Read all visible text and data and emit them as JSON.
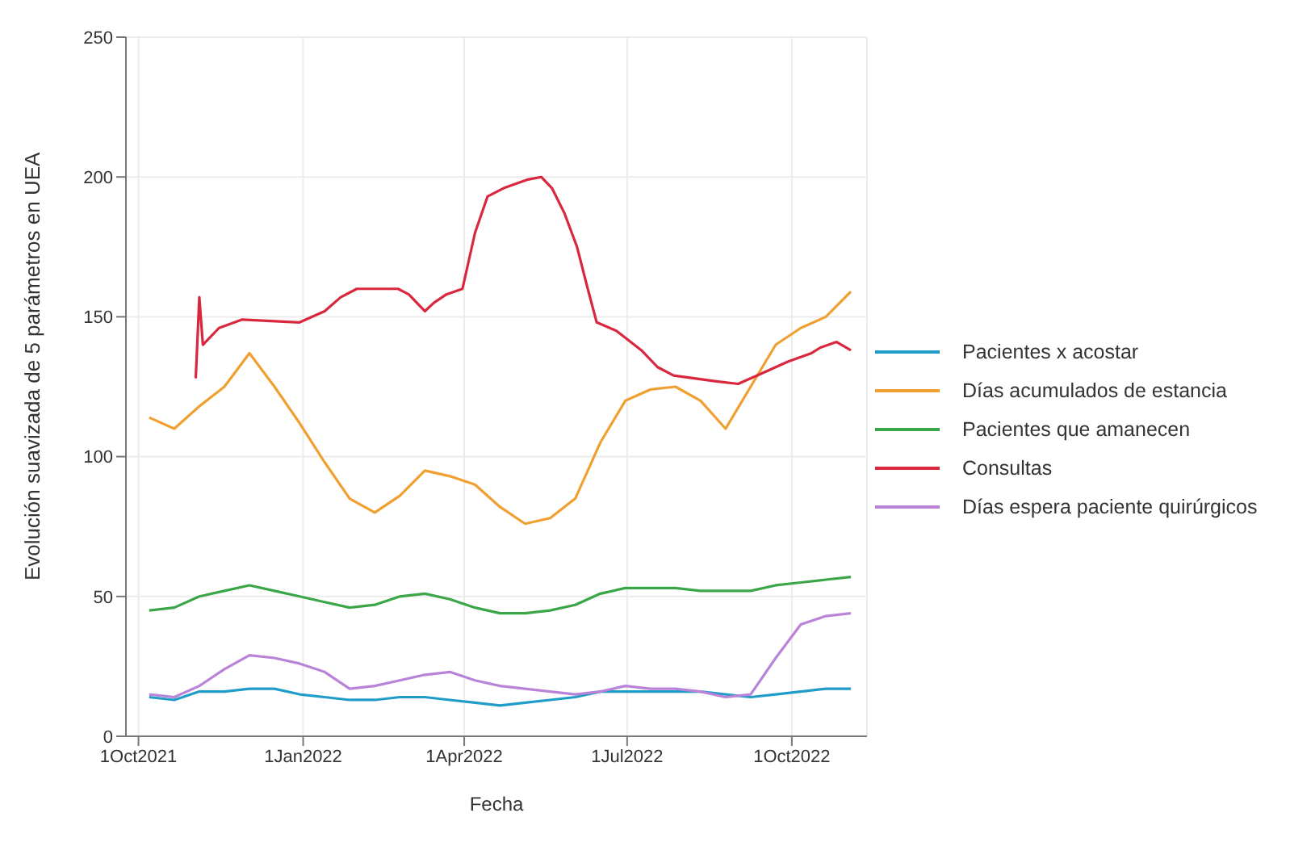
{
  "chart_data": {
    "type": "line",
    "xlabel": "Fecha",
    "ylabel": "Evolución suavizada de 5 parámetros en UEA",
    "x": [
      "2021-10-07",
      "2021-10-21",
      "2021-11-04",
      "2021-11-18",
      "2021-12-02",
      "2021-12-16",
      "2021-12-30",
      "2022-01-13",
      "2022-01-27",
      "2022-02-10",
      "2022-02-24",
      "2022-03-10",
      "2022-03-24",
      "2022-04-07",
      "2022-04-21",
      "2022-05-05",
      "2022-05-19",
      "2022-06-02",
      "2022-06-16",
      "2022-06-30",
      "2022-07-14",
      "2022-07-28",
      "2022-08-11",
      "2022-08-25",
      "2022-09-08",
      "2022-09-22",
      "2022-10-06",
      "2022-10-20",
      "2022-11-03"
    ],
    "series": [
      {
        "name": "Pacientes x acostar",
        "color": "#1f9cc8",
        "values": [
          14,
          13,
          16,
          16,
          17,
          17,
          15,
          14,
          13,
          13,
          14,
          14,
          13,
          12,
          11,
          12,
          13,
          14,
          16,
          16,
          16,
          16,
          16,
          15,
          14,
          15,
          16,
          17,
          17
        ]
      },
      {
        "name": "Días acumulados de estancia",
        "color": "#f0a030",
        "values": [
          114,
          110,
          118,
          125,
          137,
          125,
          112,
          98,
          85,
          80,
          86,
          95,
          93,
          90,
          82,
          76,
          78,
          85,
          105,
          120,
          124,
          125,
          120,
          110,
          125,
          140,
          146,
          150,
          159
        ]
      },
      {
        "name": "Pacientes que amanecen",
        "color": "#3aa648",
        "values": [
          45,
          46,
          50,
          52,
          54,
          52,
          50,
          48,
          46,
          47,
          50,
          51,
          49,
          46,
          44,
          44,
          45,
          47,
          51,
          53,
          53,
          53,
          52,
          52,
          52,
          54,
          55,
          56,
          57
        ]
      },
      {
        "name": "Consultas",
        "color": "#d9283e",
        "x": [
          "2021-11-02",
          "2021-11-04",
          "2021-11-06",
          "2021-11-15",
          "2021-11-28",
          "2021-12-30",
          "2022-01-13",
          "2022-01-22",
          "2022-01-31",
          "2022-02-23",
          "2022-03-01",
          "2022-03-10",
          "2022-03-15",
          "2022-03-22",
          "2022-03-31",
          "2022-04-07",
          "2022-04-14",
          "2022-04-23",
          "2022-05-06",
          "2022-05-14",
          "2022-05-20",
          "2022-05-27",
          "2022-06-03",
          "2022-06-09",
          "2022-06-14",
          "2022-06-25",
          "2022-07-09",
          "2022-07-18",
          "2022-07-27",
          "2022-08-19",
          "2022-09-01",
          "2022-09-15",
          "2022-09-29",
          "2022-10-12",
          "2022-10-17",
          "2022-10-26",
          "2022-11-03"
        ],
        "values": [
          128,
          157,
          140,
          146,
          149,
          148,
          152,
          157,
          160,
          160,
          158,
          152,
          155,
          158,
          160,
          180,
          193,
          196,
          199,
          200,
          196,
          187,
          175,
          160,
          148,
          145,
          138,
          132,
          129,
          127,
          126,
          130,
          134,
          137,
          139,
          141,
          138
        ]
      },
      {
        "name": "Días espera paciente quirúrgicos",
        "color": "#b984d8",
        "values": [
          15,
          14,
          18,
          24,
          29,
          28,
          26,
          23,
          17,
          18,
          20,
          22,
          23,
          20,
          18,
          17,
          16,
          15,
          16,
          18,
          17,
          17,
          16,
          14,
          15,
          28,
          40,
          43,
          44
        ]
      }
    ],
    "xlim": [
      "2021-09-24",
      "2022-11-12"
    ],
    "xticks": [
      {
        "value": "2021-10-01",
        "label": "1Oct2021"
      },
      {
        "value": "2022-01-01",
        "label": "1Jan2022"
      },
      {
        "value": "2022-04-01",
        "label": "1Apr2022"
      },
      {
        "value": "2022-07-01",
        "label": "1Jul2022"
      },
      {
        "value": "2022-10-01",
        "label": "1Oct2022"
      }
    ],
    "ylim": [
      0,
      250
    ],
    "yticks": [
      0,
      50,
      100,
      150,
      200,
      250
    ],
    "grid": true,
    "legend": "right"
  }
}
